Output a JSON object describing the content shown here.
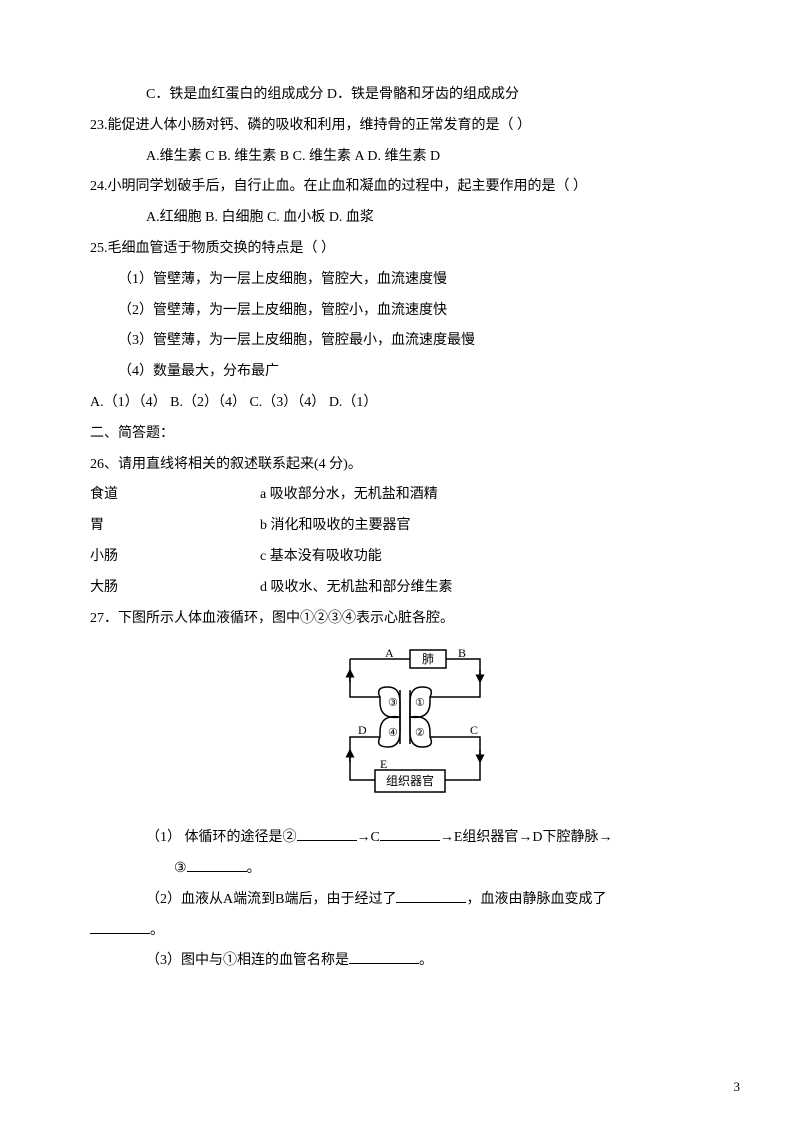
{
  "q22": {
    "optC": "C．铁是血红蛋白的组成成分",
    "optD": "D．铁是骨骼和牙齿的组成成分"
  },
  "q23": {
    "stem": "23.能促进人体小肠对钙、磷的吸收和利用，维持骨的正常发育的是（   ）",
    "optA": "A.维生素 C",
    "optB": "B. 维生素 B",
    "optC": "C. 维生素 A",
    "optD": "D. 维生素 D"
  },
  "q24": {
    "stem": "24.小明同学划破手后，自行止血。在止血和凝血的过程中，起主要作用的是（   ）",
    "optA": "A.红细胞",
    "optB": "B. 白细胞",
    "optC": "C. 血小板",
    "optD": "D. 血浆"
  },
  "q25": {
    "stem": "25.毛细血管适于物质交换的特点是（   ）",
    "item1": "（1）管壁薄，为一层上皮细胞，管腔大，血流速度慢",
    "item2": "（2）管壁薄，为一层上皮细胞，管腔小，血流速度快",
    "item3": "（3）管壁薄，为一层上皮细胞，管腔最小，血流速度最慢",
    "item4": "（4）数量最大，分布最广",
    "optA": "A.（1）（4）",
    "optB": "B.（2）（4）",
    "optC": "C.（3）（4）",
    "optD": "D.（1）"
  },
  "section2": "二、简答题：",
  "q26": {
    "stem": "26、请用直线将相关的叙述联系起来(4 分)。",
    "pairs": [
      {
        "left": "食道",
        "right": "a 吸收部分水，无机盐和酒精"
      },
      {
        "left": "胃",
        "right": "b 消化和吸收的主要器官"
      },
      {
        "left": "小肠",
        "right": "c 基本没有吸收功能"
      },
      {
        "left": "大肠",
        "right": "d 吸收水、无机盐和部分维生素"
      }
    ]
  },
  "q27": {
    "stem": "27．下图所示人体血液循环，图中①②③④表示心脏各腔。",
    "diagram": {
      "labels": {
        "A": "A",
        "B": "B",
        "C": "C",
        "D": "D",
        "E": "E",
        "lung": "肺",
        "organ": "组织器官",
        "n1": "①",
        "n2": "②",
        "n3": "③",
        "n4": "④"
      },
      "stroke": "#000000",
      "stroke_width": 1.5,
      "fill": "#ffffff",
      "font_size": 12
    },
    "sub1_a": "（1）    体循环的途径是②",
    "sub1_b": "→C",
    "sub1_c": "→E组织器官→D下腔静脉→",
    "sub1_d": "③",
    "sub1_e": "。",
    "sub2_a": "（2）血液从A端流到B端后，由于经过了",
    "sub2_b": "，血液由静脉血变成了",
    "sub2_c": "。",
    "sub3_a": "（3）图中与①相连的血管名称是",
    "sub3_b": "。"
  },
  "pageNumber": "3"
}
